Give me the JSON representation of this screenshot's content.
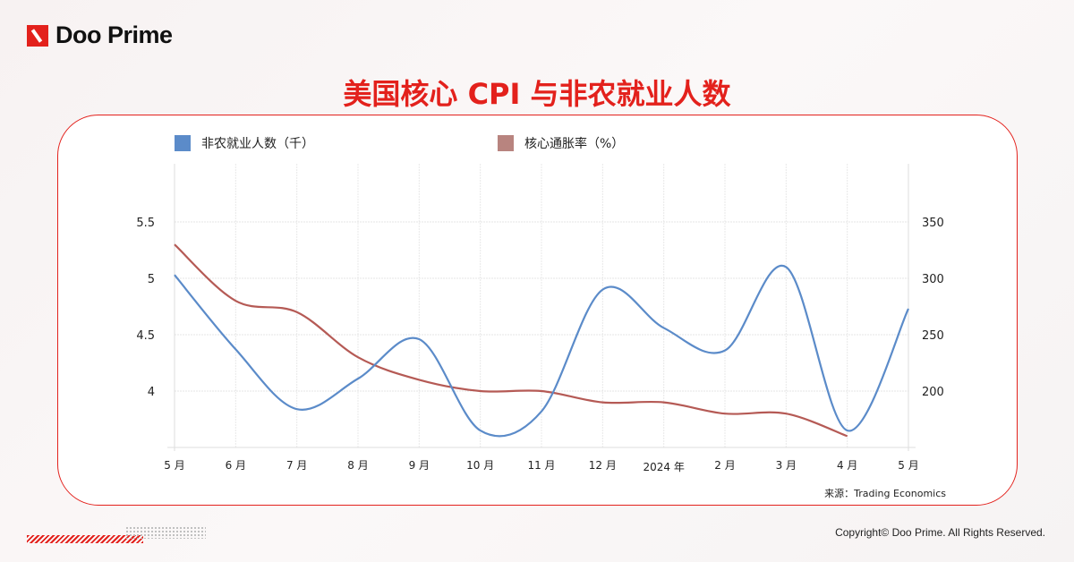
{
  "brand": {
    "name": "Doo Prime",
    "color": "#e3211c"
  },
  "title": "美国核心 CPI 与非农就业人数",
  "footer": {
    "source": "来源：Trading Economics",
    "copyright": "Copyright© Doo Prime. All Rights Reserved."
  },
  "chart_data": {
    "type": "line",
    "categories": [
      "5 月",
      "6 月",
      "7 月",
      "8 月",
      "9 月",
      "10 月",
      "11 月",
      "12 月",
      "2024 年",
      "2 月",
      "3 月",
      "4 月",
      "5 月"
    ],
    "left_axis": {
      "ticks": [
        "4",
        "4.5",
        "5",
        "5.5"
      ],
      "range": [
        3.5,
        6.0
      ]
    },
    "right_axis": {
      "ticks": [
        "200",
        "250",
        "300",
        "350"
      ],
      "range": [
        150,
        400
      ]
    },
    "grid": true,
    "legend_placement": "top",
    "series": [
      {
        "name": "非农就业人数（千）",
        "axis": "right",
        "color": "#5b8bc9",
        "values": [
          303,
          237,
          184,
          211,
          246,
          165,
          182,
          290,
          256,
          236,
          310,
          165,
          273
        ]
      },
      {
        "name": "核心通胀率（%）",
        "axis": "left",
        "color": "#b55a55",
        "values": [
          5.3,
          4.8,
          4.7,
          4.3,
          4.1,
          4.0,
          4.0,
          3.9,
          3.9,
          3.8,
          3.8,
          3.6,
          null
        ]
      }
    ]
  }
}
